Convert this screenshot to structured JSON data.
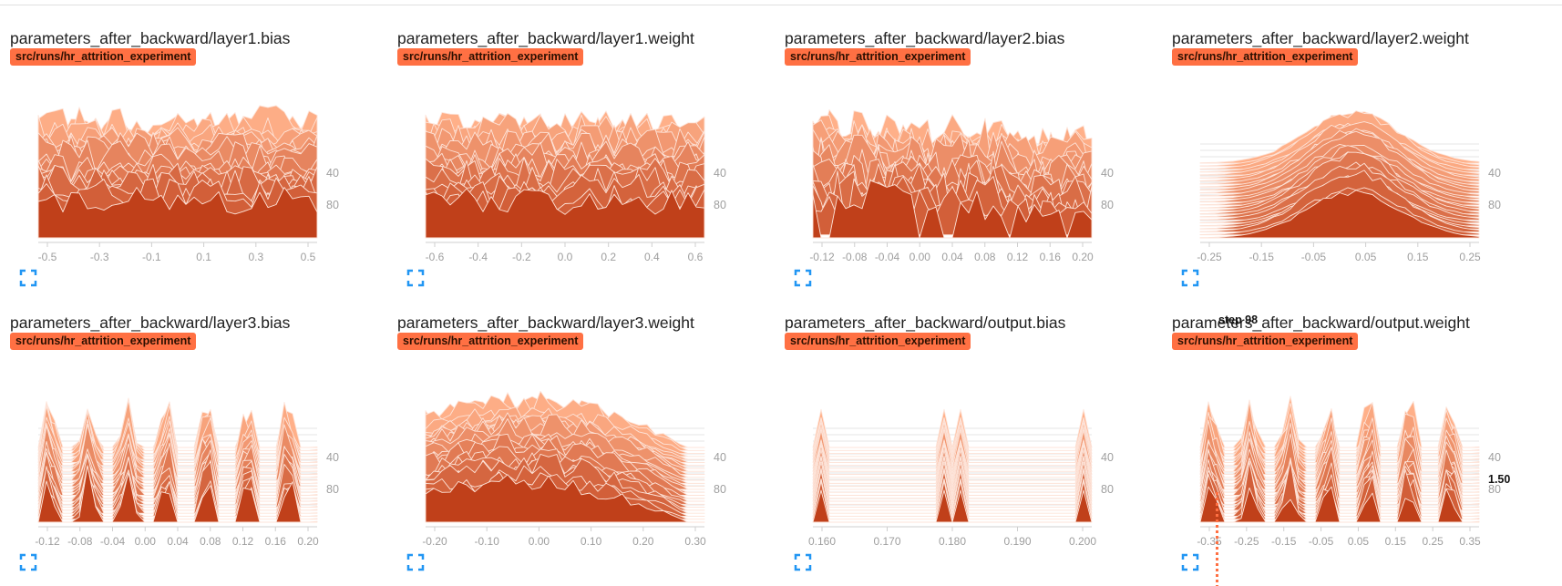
{
  "run_tag": "src/runs/hr_attrition_experiment",
  "colors": {
    "accent": "#ff7043",
    "front": "#c0401a",
    "grid": "#e6e6e6",
    "axis_text": "#9e9e9e"
  },
  "expand_icon": "fullscreen-icon",
  "hover": {
    "step_label": "step 98",
    "value_label": "1.50"
  },
  "chart_data": [
    {
      "type": "area",
      "title": "parameters_after_backward/layer1.bias",
      "x_ticks": [
        "-0.5",
        "-0.3",
        "-0.1",
        "0.1",
        "0.3",
        "0.5"
      ],
      "y_ticks": [
        "40",
        "80"
      ],
      "xlim": [
        -0.6,
        0.6
      ],
      "ylim": [
        0,
        98
      ],
      "shape": "uniform"
    },
    {
      "type": "area",
      "title": "parameters_after_backward/layer1.weight",
      "x_ticks": [
        "-0.6",
        "-0.4",
        "-0.2",
        "0.0",
        "0.2",
        "0.4",
        "0.6"
      ],
      "y_ticks": [
        "40",
        "80"
      ],
      "xlim": [
        -0.7,
        0.6
      ],
      "ylim": [
        0,
        98
      ],
      "shape": "uniform"
    },
    {
      "type": "area",
      "title": "parameters_after_backward/layer2.bias",
      "x_ticks": [
        "-0.12",
        "-0.08",
        "-0.04",
        "0.00",
        "0.04",
        "0.08",
        "0.12",
        "0.16",
        "0.20"
      ],
      "y_ticks": [
        "40",
        "80"
      ],
      "xlim": [
        -0.14,
        0.2
      ],
      "ylim": [
        0,
        98
      ],
      "shape": "spiky"
    },
    {
      "type": "area",
      "title": "parameters_after_backward/layer2.weight",
      "x_ticks": [
        "-0.25",
        "-0.15",
        "-0.05",
        "0.05",
        "0.15",
        "0.25"
      ],
      "y_ticks": [
        "40",
        "80"
      ],
      "xlim": [
        -0.3,
        0.3
      ],
      "ylim": [
        0,
        98
      ],
      "shape": "bell"
    },
    {
      "type": "area",
      "title": "parameters_after_backward/layer3.bias",
      "x_ticks": [
        "-0.12",
        "-0.08",
        "-0.04",
        "0.00",
        "0.04",
        "0.08",
        "0.12",
        "0.16",
        "0.20"
      ],
      "y_ticks": [
        "40",
        "80"
      ],
      "xlim": [
        -0.14,
        0.2
      ],
      "ylim": [
        0,
        98
      ],
      "shape": "sparse"
    },
    {
      "type": "area",
      "title": "parameters_after_backward/layer3.weight",
      "x_ticks": [
        "-0.20",
        "-0.10",
        "0.00",
        "0.10",
        "0.20",
        "0.30"
      ],
      "y_ticks": [
        "40",
        "80"
      ],
      "xlim": [
        -0.24,
        0.34
      ],
      "ylim": [
        0,
        98
      ],
      "shape": "hump"
    },
    {
      "type": "area",
      "title": "parameters_after_backward/output.bias",
      "x_ticks": [
        "0.160",
        "0.170",
        "0.180",
        "0.190",
        "0.200"
      ],
      "y_ticks": [
        "40",
        "80"
      ],
      "xlim": [
        0.155,
        0.2
      ],
      "ylim": [
        0,
        98
      ],
      "shape": "spikes"
    },
    {
      "type": "area",
      "title": "parameters_after_backward/output.weight",
      "x_ticks": [
        "-0.35",
        "-0.25",
        "-0.15",
        "-0.05",
        "0.05",
        "0.15",
        "0.25",
        "0.35"
      ],
      "y_ticks": [
        "40",
        "80"
      ],
      "xlim": [
        -0.38,
        0.38
      ],
      "ylim": [
        0,
        98
      ],
      "shape": "sparse"
    }
  ]
}
